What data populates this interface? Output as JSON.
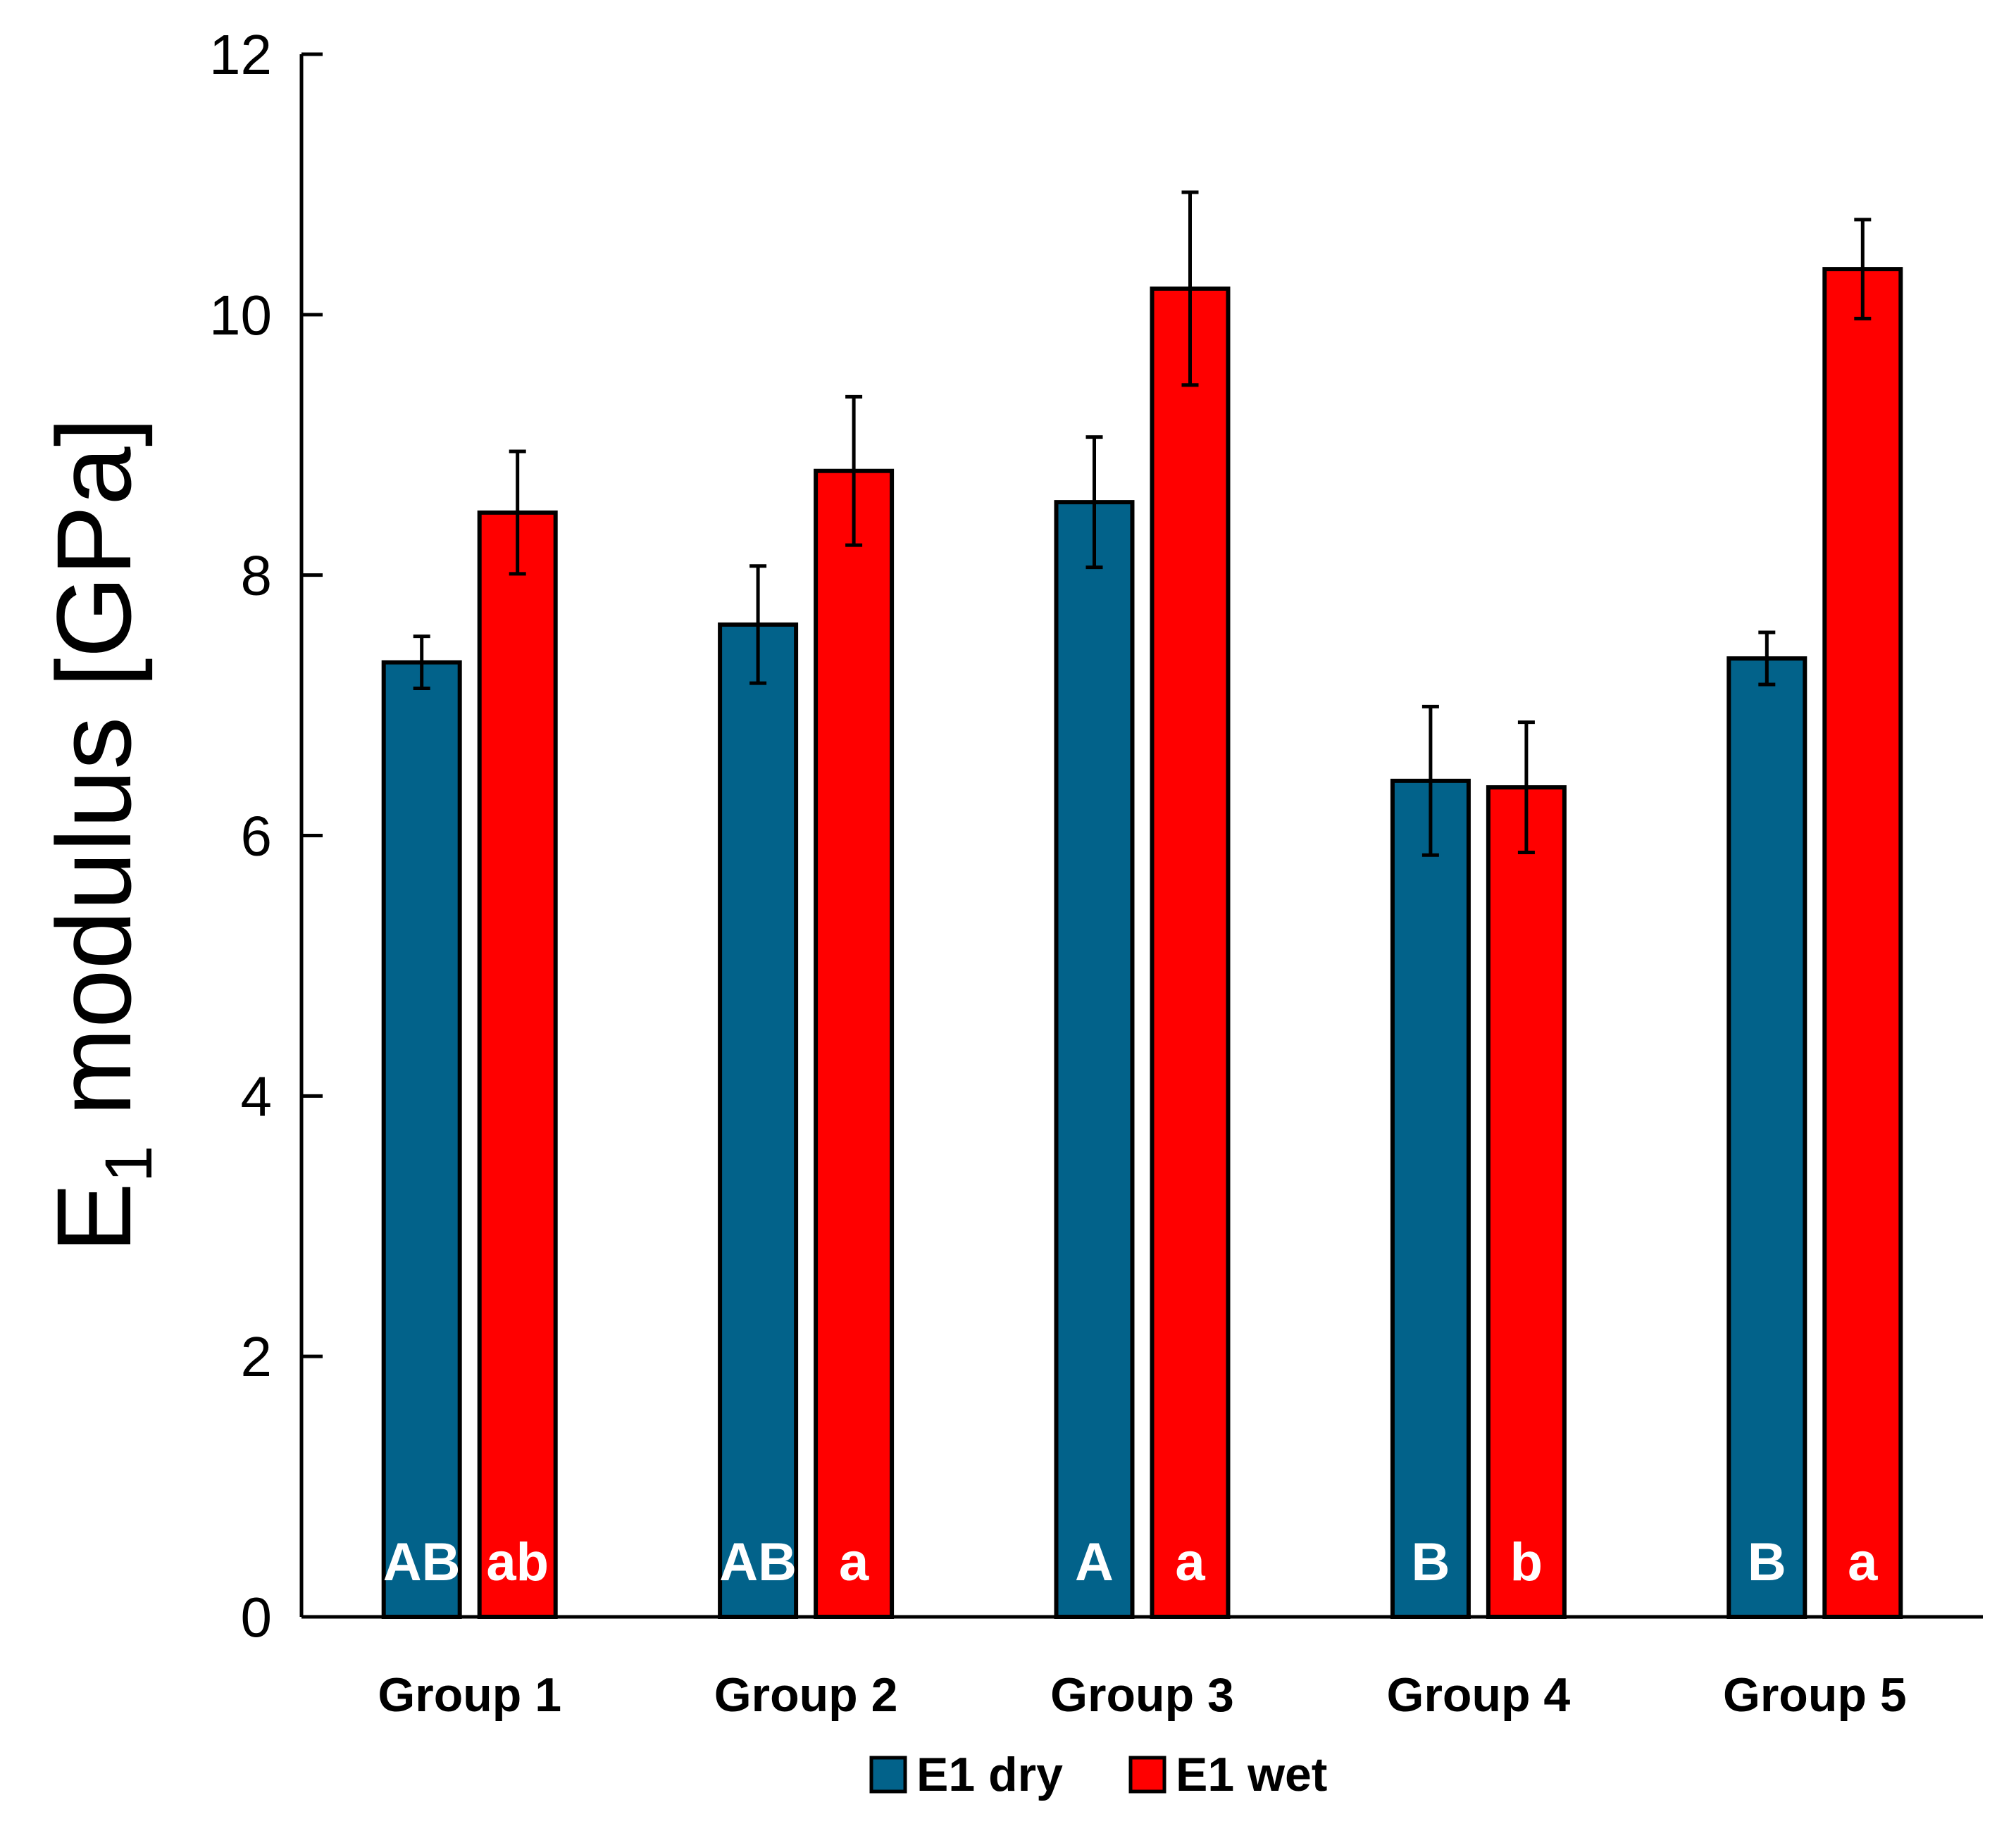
{
  "chart_data": {
    "type": "bar",
    "title": "",
    "xlabel": "",
    "ylabel": {
      "main": "E",
      "sub": "1",
      "rest": " modulus [GPa]"
    },
    "ylim": [
      0,
      12
    ],
    "yticks": [
      0,
      2,
      4,
      6,
      8,
      10,
      12
    ],
    "grid": false,
    "legend_position": "bottom-center",
    "categories": [
      "Group 1",
      "Group 2",
      "Group 3",
      "Group 4",
      "Group 5"
    ],
    "series": [
      {
        "name": "E1 dry",
        "color": "#02628a",
        "values": [
          7.33,
          7.62,
          8.56,
          6.42,
          7.36
        ],
        "errors": [
          0.2,
          0.45,
          0.5,
          0.57,
          0.2
        ],
        "labels": [
          "AB",
          "AB",
          "A",
          "B",
          "B"
        ]
      },
      {
        "name": "E1 wet",
        "color": "#ff0000",
        "values": [
          8.48,
          8.8,
          10.2,
          6.37,
          10.35
        ],
        "errors": [
          0.47,
          0.57,
          0.74,
          0.5,
          0.38
        ],
        "labels": [
          "ab",
          "a",
          "a",
          "b",
          "a"
        ]
      }
    ]
  }
}
